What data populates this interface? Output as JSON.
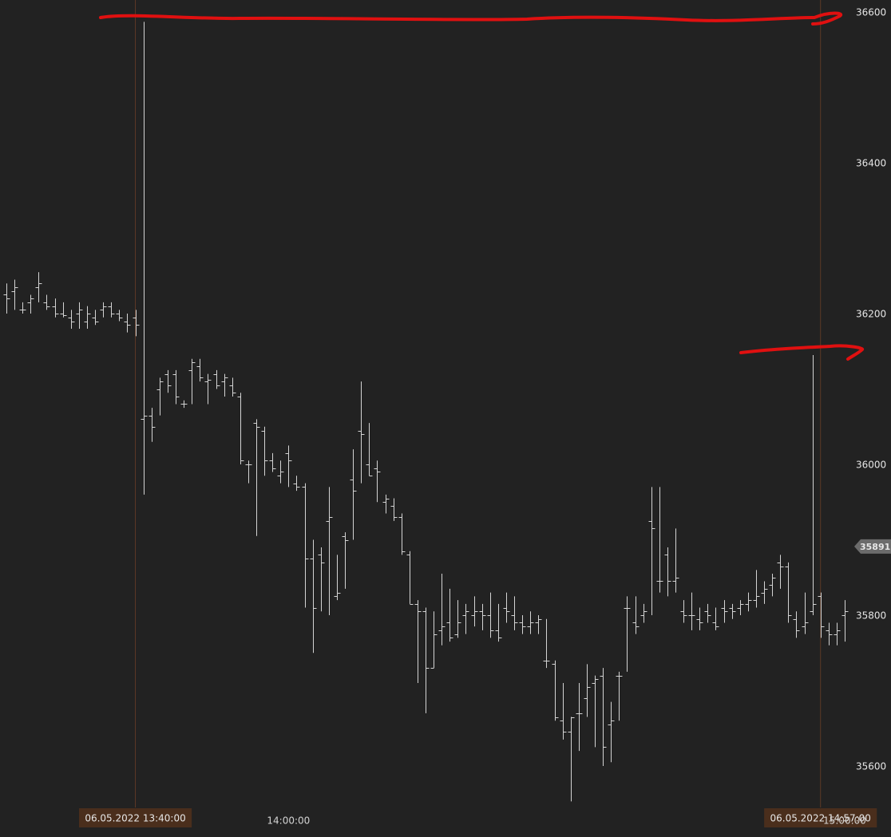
{
  "chart_data": {
    "type": "ohlc",
    "categories": [
      null,
      null,
      null,
      null,
      null,
      null,
      null,
      null,
      null,
      null,
      null,
      null,
      null,
      null,
      null,
      null,
      "06.05.2022 13:40:00",
      null,
      null,
      null,
      null,
      null,
      null,
      null,
      null,
      null,
      null,
      null,
      null,
      null,
      null,
      null,
      null,
      null,
      null,
      "14:00:00",
      null,
      null,
      null,
      null,
      null,
      null,
      null,
      null,
      null,
      null,
      null,
      null,
      null,
      null,
      null,
      null,
      null,
      null,
      null,
      null,
      null,
      null,
      null,
      null,
      null,
      null,
      null,
      null,
      null,
      null,
      null,
      null,
      null,
      null,
      null,
      null,
      null,
      null,
      null,
      null,
      null,
      null,
      null,
      null,
      null,
      null,
      null,
      null,
      null,
      null,
      null,
      null,
      null,
      null,
      null,
      null,
      null,
      null,
      null,
      null,
      null,
      null,
      null,
      null,
      null,
      "06.05.2022 14:57:00",
      null,
      null,
      "15:00:00"
    ],
    "open": [
      36225,
      36230,
      36205,
      36215,
      36235,
      36215,
      36210,
      36200,
      36195,
      36200,
      36190,
      36195,
      36205,
      36210,
      36200,
      36190,
      36195,
      36060,
      36065,
      36100,
      36120,
      36120,
      36080,
      36125,
      36130,
      36110,
      36120,
      36110,
      36105,
      36090,
      36000,
      36055,
      36045,
      36005,
      35985,
      36015,
      35975,
      35970,
      35875,
      35880,
      35925,
      35825,
      35905,
      35980,
      36045,
      36000,
      35995,
      35950,
      35945,
      35930,
      35880,
      35815,
      35805,
      35730,
      35780,
      35790,
      35775,
      35800,
      35800,
      35805,
      35800,
      35780,
      35810,
      35800,
      35790,
      35785,
      35790,
      35740,
      35735,
      35660,
      35645,
      35670,
      35690,
      35710,
      35720,
      35655,
      35720,
      35810,
      35790,
      35800,
      35925,
      35845,
      35880,
      35845,
      35805,
      35800,
      35795,
      35805,
      35790,
      35810,
      35810,
      35810,
      35815,
      35820,
      35830,
      35840,
      35870,
      35865,
      35795,
      35785,
      35805,
      35825,
      35780,
      35775,
      35800
    ],
    "high": [
      36240,
      36245,
      36215,
      36225,
      36255,
      36225,
      36220,
      36215,
      36205,
      36215,
      36210,
      36205,
      36215,
      36215,
      36205,
      36200,
      36205,
      36587,
      36075,
      36115,
      36125,
      36125,
      36085,
      36140,
      36140,
      36120,
      36125,
      36120,
      36115,
      36095,
      36005,
      36060,
      36050,
      36015,
      36005,
      36025,
      35985,
      35975,
      35900,
      35890,
      35970,
      35880,
      35910,
      36020,
      36110,
      36055,
      36005,
      35960,
      35955,
      35935,
      35885,
      35820,
      35810,
      35805,
      35855,
      35835,
      35820,
      35815,
      35825,
      35815,
      35830,
      35815,
      35830,
      35825,
      35800,
      35805,
      35800,
      35795,
      35740,
      35710,
      35665,
      35710,
      35735,
      35720,
      35730,
      35685,
      35725,
      35825,
      35825,
      35815,
      35970,
      35970,
      35890,
      35915,
      35820,
      35830,
      35810,
      35815,
      35810,
      35820,
      35815,
      35820,
      35830,
      35860,
      35845,
      35855,
      35880,
      35870,
      35805,
      35830,
      36145,
      35830,
      35790,
      35790,
      35820
    ],
    "low": [
      36200,
      36205,
      36200,
      36200,
      36215,
      36205,
      36195,
      36195,
      36180,
      36180,
      36180,
      36185,
      36195,
      36195,
      36190,
      36175,
      36170,
      35960,
      36030,
      36065,
      36095,
      36080,
      36075,
      36080,
      36110,
      36080,
      36100,
      36090,
      36090,
      36000,
      35975,
      35905,
      35985,
      35990,
      35975,
      35970,
      35965,
      35810,
      35750,
      35805,
      35800,
      35820,
      35835,
      35900,
      35975,
      35985,
      35950,
      35935,
      35925,
      35880,
      35815,
      35710,
      35670,
      35730,
      35760,
      35765,
      35770,
      35775,
      35785,
      35780,
      35770,
      35765,
      35790,
      35780,
      35775,
      35775,
      35775,
      35730,
      35660,
      35635,
      35553,
      35620,
      35665,
      35625,
      35600,
      35605,
      35660,
      35725,
      35775,
      35790,
      35800,
      35830,
      35825,
      35830,
      35790,
      35780,
      35780,
      35790,
      35780,
      35790,
      35795,
      35800,
      35805,
      35810,
      35815,
      35825,
      35835,
      35790,
      35770,
      35775,
      35800,
      35770,
      35760,
      35760,
      35765
    ],
    "close": [
      36220,
      36235,
      36205,
      36220,
      36240,
      36210,
      36200,
      36198,
      36190,
      36205,
      36200,
      36190,
      36210,
      36200,
      36195,
      36185,
      36185,
      36065,
      36050,
      36110,
      36105,
      36090,
      36080,
      36135,
      36115,
      36112,
      36105,
      36115,
      36095,
      36005,
      36000,
      36050,
      36005,
      35995,
      35990,
      36005,
      35970,
      35875,
      35810,
      35870,
      35930,
      35830,
      35900,
      35965,
      36040,
      35985,
      35990,
      35955,
      35930,
      35885,
      35815,
      35805,
      35730,
      35775,
      35785,
      35770,
      35790,
      35805,
      35805,
      35800,
      35780,
      35770,
      35805,
      35790,
      35785,
      35790,
      35795,
      35740,
      35665,
      35645,
      35665,
      35670,
      35705,
      35715,
      35625,
      35660,
      35720,
      35810,
      35785,
      35805,
      35915,
      35845,
      35845,
      35850,
      35800,
      35800,
      35790,
      35800,
      35785,
      35805,
      35805,
      35815,
      35820,
      35825,
      35835,
      35850,
      35865,
      35800,
      35780,
      35790,
      35815,
      35785,
      35775,
      35780,
      35805
    ],
    "color": "#d4d4d4",
    "ylim": [
      35546,
      36616
    ],
    "yticks": [
      35600,
      35800,
      36000,
      36200,
      36400,
      36600
    ],
    "last_price": {
      "value": 35891.2,
      "label": "35891,2"
    }
  }
}
